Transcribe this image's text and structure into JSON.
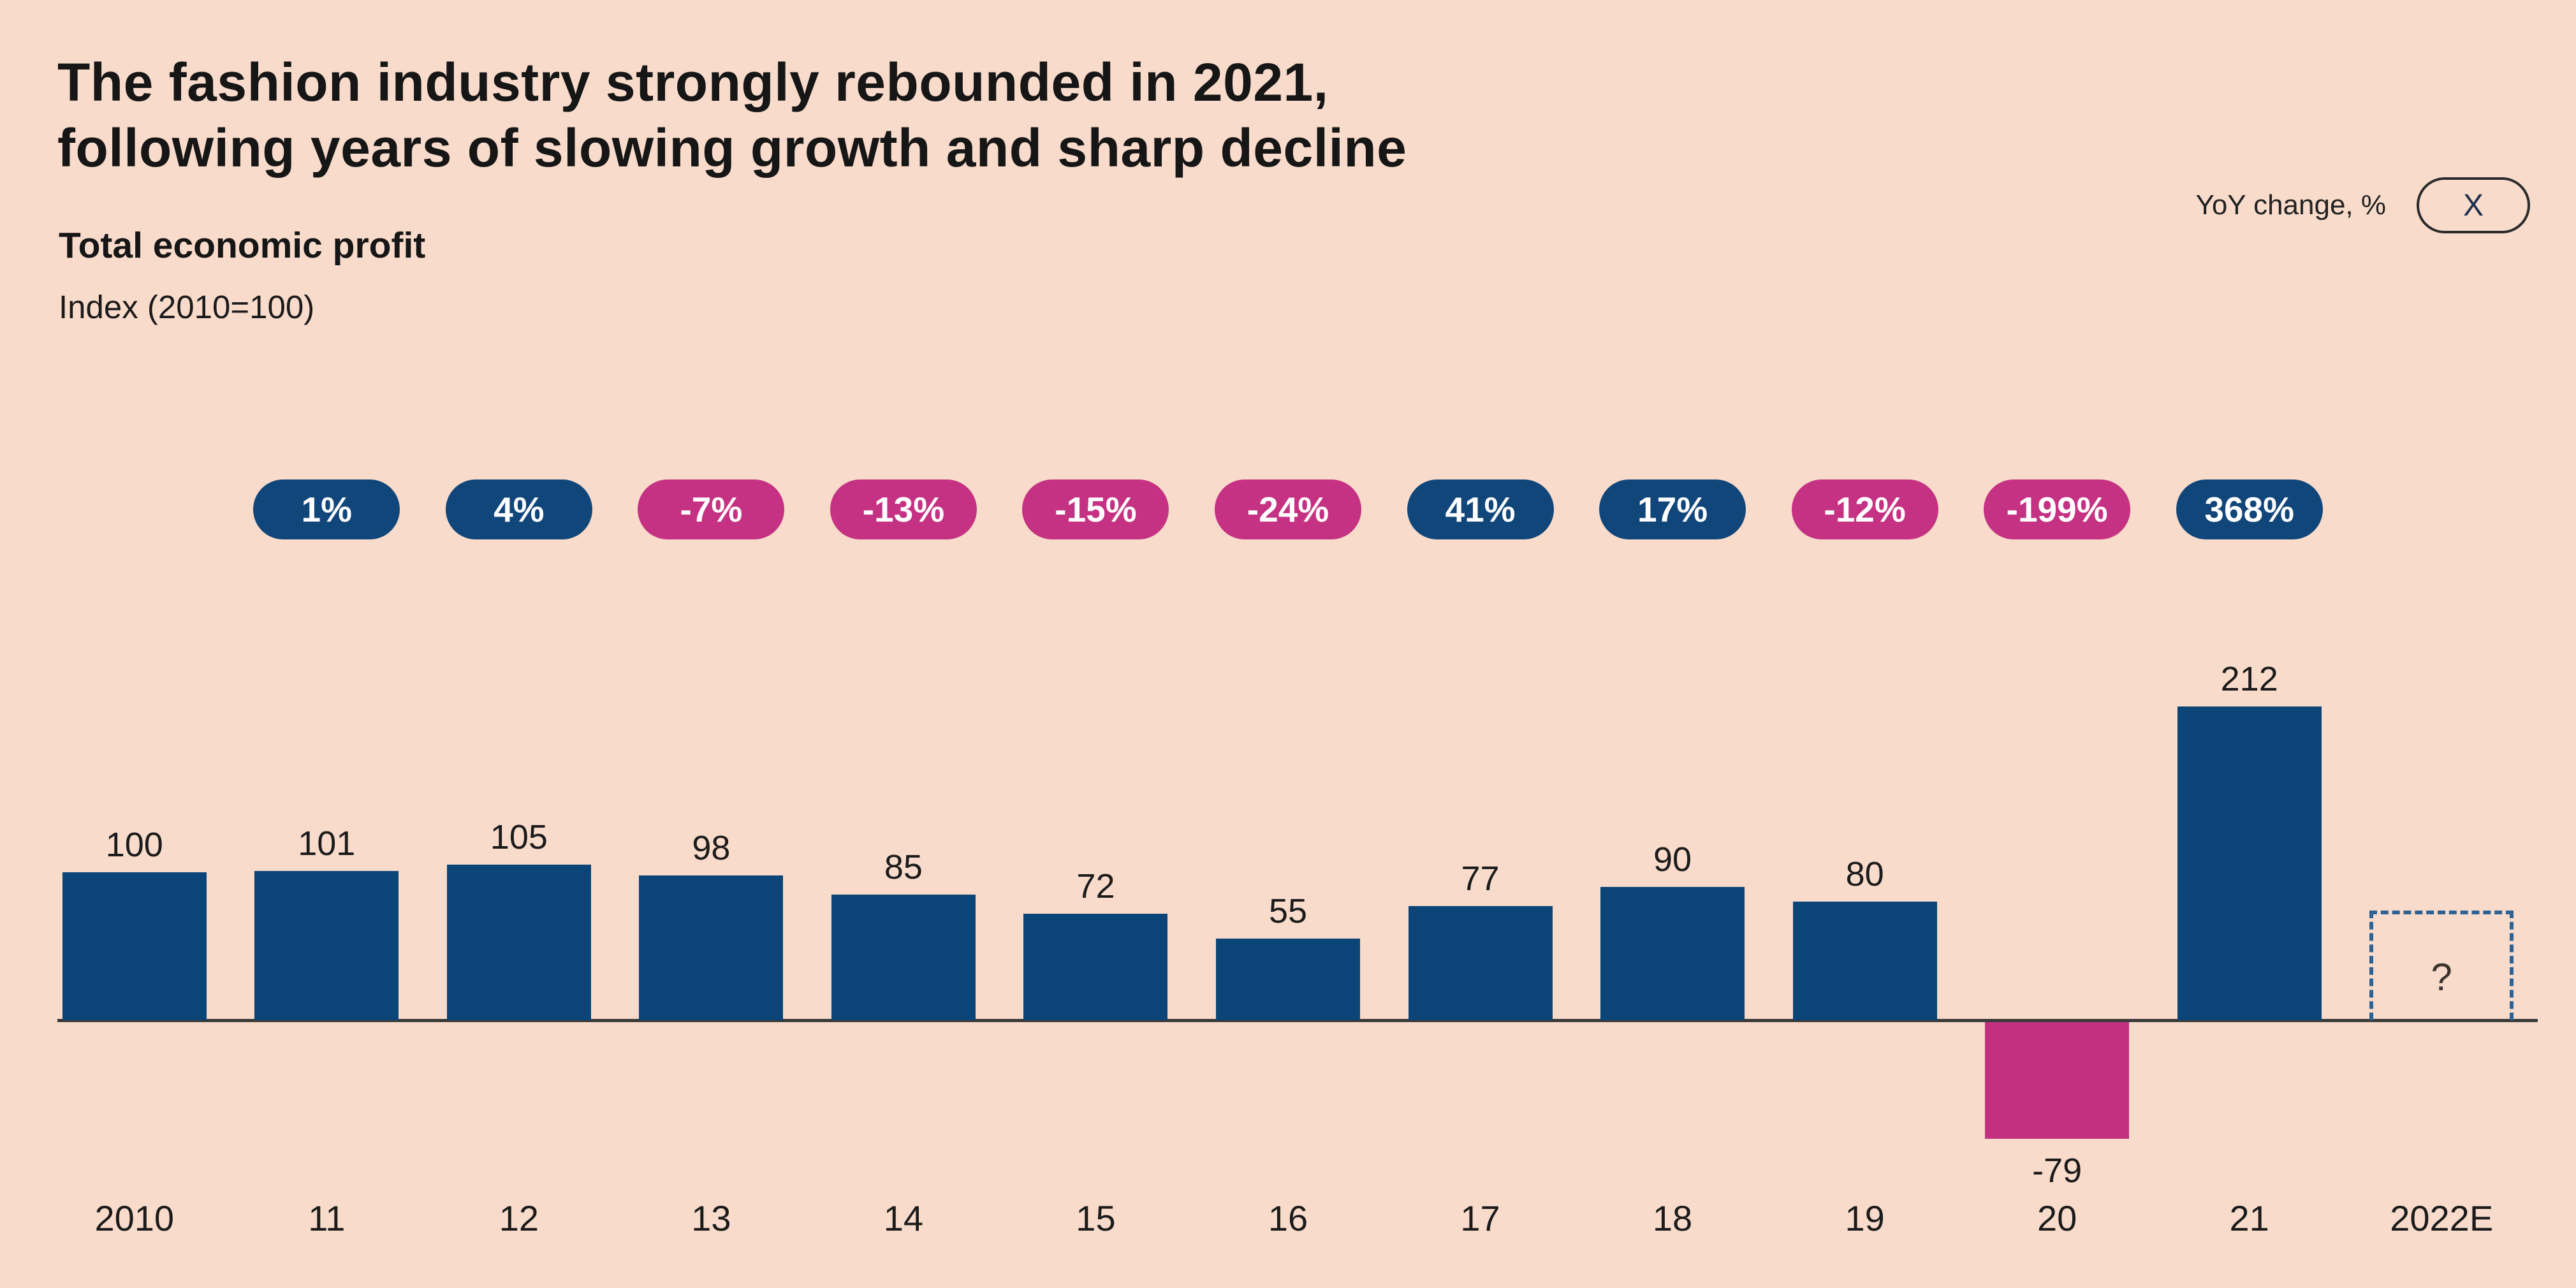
{
  "header": {
    "title_line1": "The fashion industry strongly rebounded in 2021,",
    "title_line2": "following years of slowing growth and sharp decline",
    "subtitle": "Total economic profit",
    "unit_label": "Index (2010=100)"
  },
  "legend": {
    "label": "YoY change, %",
    "close_label": "X"
  },
  "colors": {
    "background": "#F8DBCB",
    "bar_positive": "#0B4577",
    "bar_negative": "#C2317F",
    "pill_positive": "#11467A",
    "pill_negative": "#C53283",
    "axis": "#3A3A3A",
    "estimate_border": "#2C6394",
    "text": "#1B1B1B"
  },
  "chart_data": {
    "type": "bar",
    "title": "Total economic profit",
    "ylabel": "Index (2010=100)",
    "categories": [
      "2010",
      "11",
      "12",
      "13",
      "14",
      "15",
      "16",
      "17",
      "18",
      "19",
      "20",
      "21",
      "2022E"
    ],
    "values": [
      100,
      101,
      105,
      98,
      85,
      72,
      55,
      77,
      90,
      80,
      -79,
      212,
      null
    ],
    "value_labels": [
      "100",
      "101",
      "105",
      "98",
      "85",
      "72",
      "55",
      "77",
      "90",
      "80",
      "-79",
      "212",
      "?"
    ],
    "yoy_change_labels": [
      null,
      "1%",
      "4%",
      "-7%",
      "-13%",
      "-15%",
      "-24%",
      "41%",
      "17%",
      "-12%",
      "-199%",
      "368%",
      null
    ],
    "estimate_category": "2022E",
    "estimate_label": "?",
    "grid": false,
    "legend_position": "top-right"
  }
}
